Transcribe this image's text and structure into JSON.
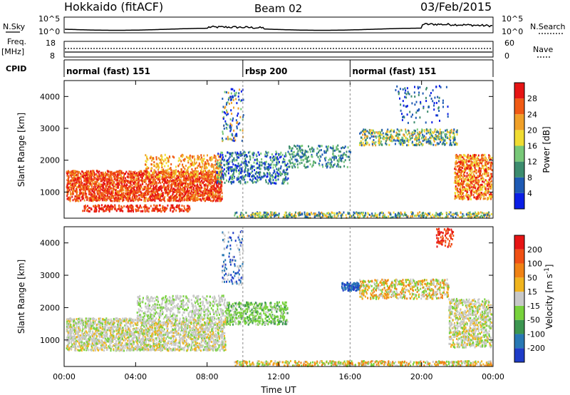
{
  "header": {
    "station": "Hokkaido (fitACF)",
    "beam": "Beam 02",
    "date": "03/Feb/2015"
  },
  "noise_strip": {
    "left_label": "N.Sky",
    "right_label": "N.Search",
    "left_ticks": [
      "10^5",
      "10^0"
    ],
    "right_ticks": [
      "10^5",
      "10^0"
    ]
  },
  "freq_strip": {
    "left_label_line1": "Freq.",
    "left_label_line2": "[MHz]",
    "right_label": "Nave",
    "left_ticks": [
      "18",
      "8"
    ],
    "right_ticks": [
      "60",
      "0"
    ]
  },
  "cpid_strip": {
    "label": "CPID",
    "segments": [
      {
        "name": "normal (fast) 151",
        "start_h": 0,
        "end_h": 10
      },
      {
        "name": "rbsp 200",
        "start_h": 10,
        "end_h": 16
      },
      {
        "name": "normal (fast) 151",
        "start_h": 16,
        "end_h": 24
      }
    ]
  },
  "chart_data": [
    {
      "type": "heatmap",
      "panel": "power",
      "ylabel": "Slant Range [km]",
      "xlabel": "",
      "y_ticks": [
        1000,
        2000,
        3000,
        4000
      ],
      "ylim": [
        180,
        4500
      ],
      "xlim_hours": [
        0,
        24
      ],
      "colorbar": {
        "label": "Power [dB]",
        "ticks": [
          4,
          8,
          12,
          16,
          20,
          24,
          28
        ],
        "colors": [
          "#0a1ee6",
          "#1e5ab4",
          "#3c8c6e",
          "#78c878",
          "#f0dc32",
          "#f0a028",
          "#f05a14",
          "#e61414"
        ]
      }
    },
    {
      "type": "heatmap",
      "panel": "velocity",
      "ylabel": "Slant Range [km]",
      "xlabel": "Time UT",
      "y_ticks": [
        1000,
        2000,
        3000,
        4000
      ],
      "ylim": [
        180,
        4500
      ],
      "x_ticks": [
        "00:00",
        "04:00",
        "08:00",
        "12:00",
        "16:00",
        "20:00",
        "00:00"
      ],
      "colorbar": {
        "label": "Velocity [m s",
        "label_superscript": "-1",
        "label_end": "]",
        "ticks": [
          "200",
          "100",
          "50",
          "15",
          "-15",
          "-50",
          "-100",
          "-200"
        ],
        "colors": [
          "#1e3cc8",
          "#2878b4",
          "#3c9650",
          "#78d23c",
          "#c8c8c8",
          "#f0b41e",
          "#f08214",
          "#f05014",
          "#e61414"
        ]
      }
    }
  ]
}
